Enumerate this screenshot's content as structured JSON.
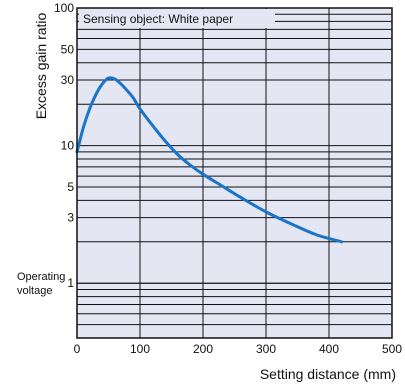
{
  "chart_data": {
    "type": "line",
    "title": "",
    "xlabel": "Setting distance (mm)",
    "ylabel": "Excess gain ratio",
    "annotation_box": "Sensing object: White paper",
    "operating_voltage_label_line1": "Operating",
    "operating_voltage_label_line2": "voltage",
    "x_scale": "linear",
    "y_scale": "log",
    "xlim": [
      0,
      500
    ],
    "ylim": [
      0.4,
      100
    ],
    "x_ticks": [
      0,
      100,
      200,
      300,
      400,
      500
    ],
    "x_tick_labels": [
      "0",
      "100",
      "200",
      "300",
      "400",
      "500"
    ],
    "y_tick_values": [
      1,
      3,
      5,
      10,
      30,
      50,
      100
    ],
    "y_tick_labels": [
      "1",
      "3",
      "5",
      "10",
      "30",
      "50",
      "100"
    ],
    "grid": true,
    "colors": {
      "plot_background": "#e4e6f4",
      "grid": "#111111",
      "series": "#1a74c8"
    },
    "series": [
      {
        "name": "",
        "x": [
          0,
          10,
          20,
          30,
          40,
          50,
          60,
          70,
          80,
          90,
          100,
          120,
          140,
          160,
          180,
          200,
          230,
          260,
          300,
          340,
          380,
          420
        ],
        "y": [
          9,
          13.5,
          18.5,
          23.5,
          28,
          31,
          30.5,
          28,
          25,
          22,
          18.5,
          14,
          10.8,
          8.6,
          7.2,
          6.2,
          5.1,
          4.2,
          3.3,
          2.7,
          2.25,
          2.0
        ]
      }
    ]
  }
}
